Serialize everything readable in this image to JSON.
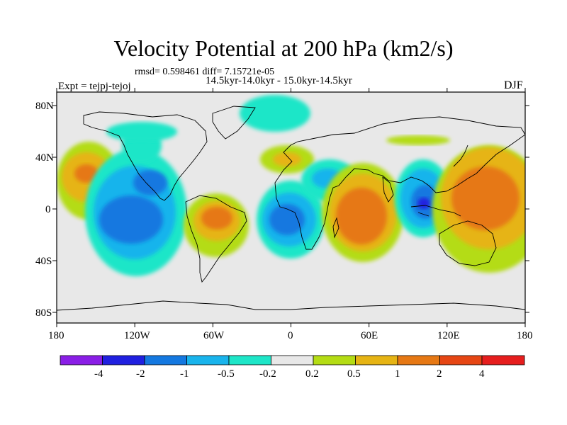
{
  "header": {
    "title": "Velocity Potential at 200 hPa (km2/s)",
    "stats": "rmsd= 0.598461 diff= 7.15721e-05",
    "period": "14.5kyr-14.0kyr - 15.0kyr-14.5kyr",
    "experiment": "Expt = tejpj-tejoj",
    "season": "DJF"
  },
  "map": {
    "projection": "cylindrical-equidistant",
    "lat_labels": [
      "80N",
      "40N",
      "0",
      "40S",
      "80S"
    ],
    "lon_labels": [
      "180",
      "120W",
      "60W",
      "0",
      "60E",
      "120E",
      "180"
    ],
    "background_color": "#e8e8e8"
  },
  "colorbar": {
    "labels": [
      "-4",
      "-2",
      "-1",
      "-0.5",
      "-0.2",
      "0.2",
      "0.5",
      "1",
      "2",
      "4"
    ],
    "colors": [
      "#8a1ee6",
      "#2020e0",
      "#1478e0",
      "#19b4ec",
      "#1ee6c8",
      "#e8e8e8",
      "#b4dc14",
      "#e6b414",
      "#e67814",
      "#e64614",
      "#e61e1e"
    ]
  }
}
